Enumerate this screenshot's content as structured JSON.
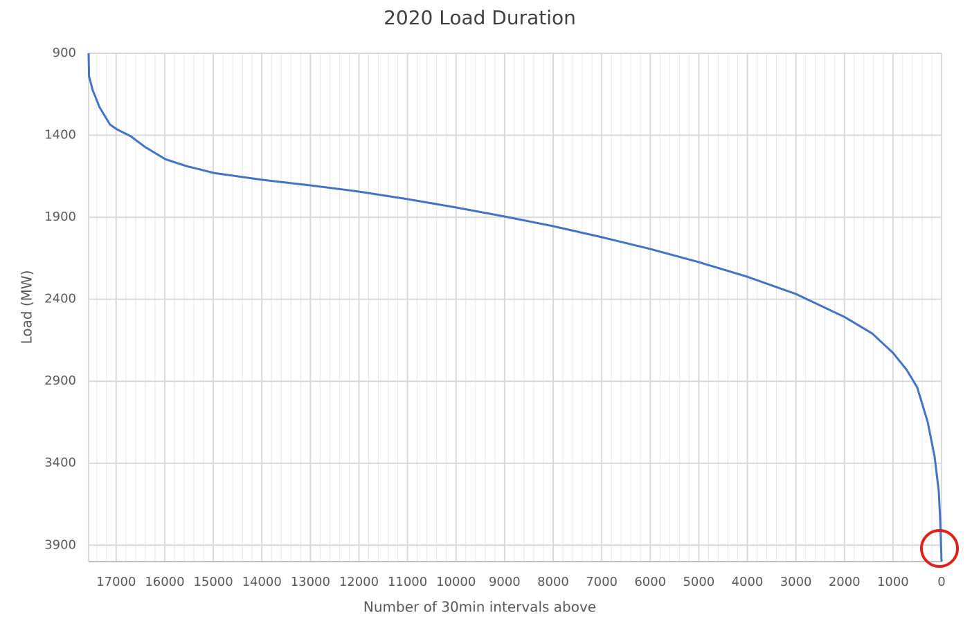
{
  "chart_data": {
    "type": "line",
    "title": "2020 Load Duration",
    "x_label": "Number of 30min intervals above",
    "y_label": "Load (MW)",
    "series": [
      {
        "color": "#4472c4",
        "x": [
          17568,
          17560,
          17485,
          17342,
          17128,
          16985,
          16700,
          16415,
          15986,
          15558,
          14987,
          13988,
          12989,
          11990,
          10991,
          9991,
          8992,
          7993,
          6994,
          5995,
          4996,
          3997,
          2997,
          1998,
          1427,
          999,
          714,
          500,
          285,
          143,
          57,
          29,
          0
        ],
        "values": [
          900,
          1040,
          1124,
          1229,
          1335,
          1364,
          1406,
          1470,
          1546,
          1588,
          1630,
          1672,
          1706,
          1744,
          1790,
          1841,
          1896,
          1955,
          2022,
          2094,
          2174,
          2263,
          2368,
          2508,
          2609,
          2727,
          2832,
          2938,
          3149,
          3360,
          3571,
          3740,
          4000
        ]
      }
    ],
    "xlim": [
      17568,
      0
    ],
    "xticks": [
      17000,
      16000,
      15000,
      14000,
      13000,
      12000,
      11000,
      10000,
      9000,
      8000,
      7000,
      6000,
      5000,
      4000,
      3000,
      2000,
      1000,
      0
    ],
    "ylim": [
      4000,
      900
    ],
    "yticks": [
      900,
      1400,
      1900,
      2400,
      2900,
      3400,
      3900
    ],
    "grid": true,
    "minor_grid_step": 200
  }
}
